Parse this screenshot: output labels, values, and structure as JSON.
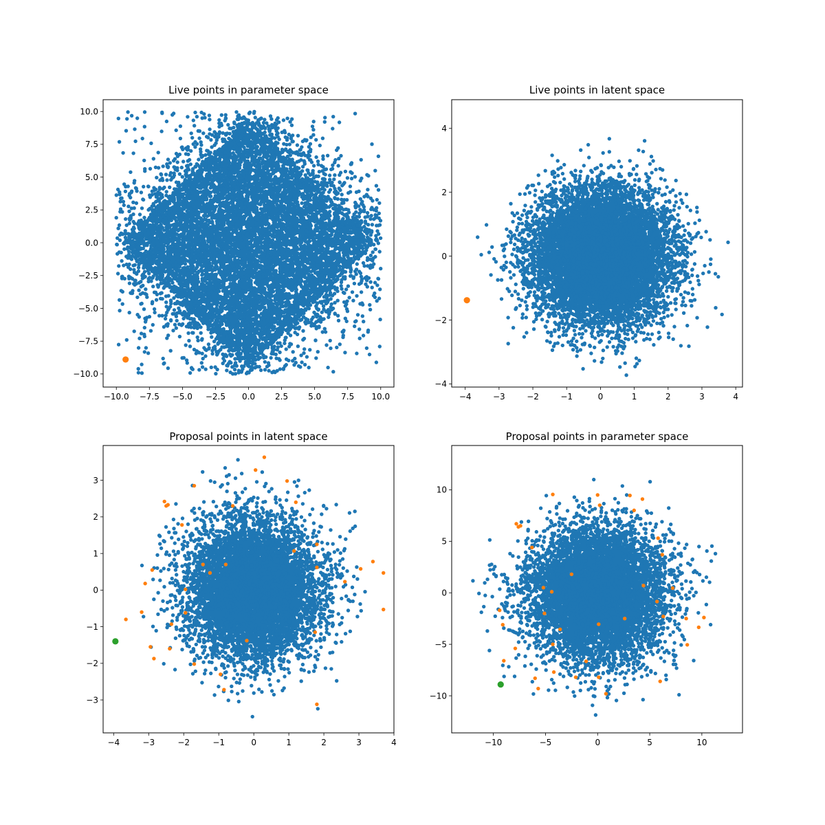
{
  "colors": {
    "blue": "#1f77b4",
    "orange": "#ff7f0e",
    "green": "#2ca02c"
  },
  "chart_data": [
    {
      "type": "scatter",
      "title": "Live points in parameter space",
      "xlim": [
        -11.0,
        11.0
      ],
      "ylim": [
        -11.0,
        10.9
      ],
      "xticks": [
        -10.0,
        -7.5,
        -5.0,
        -2.5,
        0.0,
        2.5,
        5.0,
        7.5,
        10.0
      ],
      "xtick_labels": [
        "−10.0",
        "−7.5",
        "−5.0",
        "−2.5",
        "0.0",
        "2.5",
        "5.0",
        "7.5",
        "10.0"
      ],
      "yticks": [
        -10.0,
        -7.5,
        -5.0,
        -2.5,
        0.0,
        2.5,
        5.0,
        7.5,
        10.0
      ],
      "ytick_labels": [
        "−10.0",
        "−7.5",
        "−5.0",
        "−2.5",
        "0.0",
        "2.5",
        "5.0",
        "7.5",
        "10.0"
      ],
      "bulk": {
        "distribution": "diamond",
        "half_width": 10.0,
        "dense_count": 9000,
        "sparse_count": 1800,
        "color": "blue",
        "seed": 11
      },
      "highlight": [
        {
          "x": -9.3,
          "y": -8.9,
          "color": "orange"
        }
      ]
    },
    {
      "type": "scatter",
      "title": "Live points in latent space",
      "xlim": [
        -4.4,
        4.2
      ],
      "ylim": [
        -4.1,
        4.9
      ],
      "xticks": [
        -4,
        -3,
        -2,
        -1,
        0,
        1,
        2,
        3,
        4
      ],
      "xtick_labels": [
        "−4",
        "−3",
        "−2",
        "−1",
        "0",
        "1",
        "2",
        "3",
        "4"
      ],
      "yticks": [
        -4,
        -2,
        0,
        2,
        4
      ],
      "ytick_labels": [
        "−4",
        "−2",
        "0",
        "2",
        "4"
      ],
      "bulk": {
        "distribution": "gaussian",
        "sigma": 1.0,
        "dense_count": 9000,
        "sparse_count": 1400,
        "clip": 3.9,
        "color": "blue",
        "seed": 23
      },
      "highlight": [
        {
          "x": -3.95,
          "y": -1.38,
          "color": "orange"
        }
      ]
    },
    {
      "type": "scatter",
      "title": "Proposal points in latent space",
      "xlim": [
        -4.3,
        4.0
      ],
      "ylim": [
        -3.9,
        3.95
      ],
      "xticks": [
        -4,
        -3,
        -2,
        -1,
        0,
        1,
        2,
        3,
        4
      ],
      "xtick_labels": [
        "−4",
        "−3",
        "−2",
        "−1",
        "0",
        "1",
        "2",
        "3",
        "4"
      ],
      "yticks": [
        -3,
        -2,
        -1,
        0,
        1,
        2,
        3
      ],
      "ytick_labels": [
        "−3",
        "−2",
        "−1",
        "0",
        "1",
        "2",
        "3"
      ],
      "bulk": {
        "distribution": "gaussian",
        "sigma": 0.95,
        "dense_count": 6500,
        "sparse_count": 900,
        "clip": 3.6,
        "color": "blue",
        "seed": 37
      },
      "points": [
        {
          "x": 0.3,
          "y": 3.63
        },
        {
          "x": 0.05,
          "y": 3.28
        },
        {
          "x": 0.95,
          "y": 2.98
        },
        {
          "x": -1.7,
          "y": 2.85
        },
        {
          "x": -2.55,
          "y": 2.42
        },
        {
          "x": -2.45,
          "y": 2.33
        },
        {
          "x": -2.5,
          "y": 2.3
        },
        {
          "x": -0.6,
          "y": 2.3
        },
        {
          "x": 1.2,
          "y": 2.4
        },
        {
          "x": -2.05,
          "y": 1.78
        },
        {
          "x": 1.8,
          "y": 1.25
        },
        {
          "x": 1.15,
          "y": 1.07
        },
        {
          "x": 3.4,
          "y": 0.78
        },
        {
          "x": -1.45,
          "y": 0.7
        },
        {
          "x": -0.8,
          "y": 0.7
        },
        {
          "x": 1.8,
          "y": 0.62
        },
        {
          "x": 3.05,
          "y": 0.58
        },
        {
          "x": -2.9,
          "y": 0.55
        },
        {
          "x": 3.7,
          "y": 0.47
        },
        {
          "x": -1.25,
          "y": 0.47
        },
        {
          "x": 2.6,
          "y": 0.23
        },
        {
          "x": -3.1,
          "y": 0.18
        },
        {
          "x": -1.95,
          "y": 0.02
        },
        {
          "x": -1.95,
          "y": -0.62
        },
        {
          "x": -3.2,
          "y": -0.6
        },
        {
          "x": 3.7,
          "y": -0.53
        },
        {
          "x": -3.65,
          "y": -0.8
        },
        {
          "x": -2.35,
          "y": -0.93
        },
        {
          "x": 1.75,
          "y": -1.15
        },
        {
          "x": -0.2,
          "y": -1.38
        },
        {
          "x": -2.95,
          "y": -1.55
        },
        {
          "x": -2.4,
          "y": -1.6
        },
        {
          "x": -2.85,
          "y": -1.87
        },
        {
          "x": -1.7,
          "y": -2.02
        },
        {
          "x": -0.95,
          "y": -2.3
        },
        {
          "x": -0.85,
          "y": -2.72
        },
        {
          "x": 1.8,
          "y": -3.12
        }
      ],
      "points_color": "orange",
      "highlight": [
        {
          "x": -3.95,
          "y": -1.4,
          "color": "green"
        }
      ]
    },
    {
      "type": "scatter",
      "title": "Proposal points in parameter space",
      "xlim": [
        -14.0,
        13.9
      ],
      "ylim": [
        -13.6,
        14.3
      ],
      "xticks": [
        -10,
        -5,
        0,
        5,
        10
      ],
      "xtick_labels": [
        "−10",
        "−5",
        "0",
        "5",
        "10"
      ],
      "yticks": [
        -10,
        -5,
        0,
        5,
        10
      ],
      "ytick_labels": [
        "−10",
        "−5",
        "0",
        "5",
        "10"
      ],
      "bulk": {
        "distribution": "gaussian",
        "sigma": 3.2,
        "dense_count": 6500,
        "sparse_count": 900,
        "clip": 12.8,
        "color": "blue",
        "seed": 53
      },
      "points": [
        {
          "x": -4.3,
          "y": 9.55
        },
        {
          "x": 0.0,
          "y": 9.5
        },
        {
          "x": 3.1,
          "y": 9.45
        },
        {
          "x": 4.3,
          "y": 9.1
        },
        {
          "x": 0.2,
          "y": 8.5
        },
        {
          "x": 3.5,
          "y": 8.0
        },
        {
          "x": -7.8,
          "y": 6.7
        },
        {
          "x": -7.6,
          "y": 6.4
        },
        {
          "x": -7.4,
          "y": 6.5
        },
        {
          "x": 5.8,
          "y": 5.3
        },
        {
          "x": -6.3,
          "y": 4.4
        },
        {
          "x": 6.2,
          "y": 3.7
        },
        {
          "x": -2.5,
          "y": 1.8
        },
        {
          "x": 4.4,
          "y": 0.7
        },
        {
          "x": -5.2,
          "y": 0.5
        },
        {
          "x": 7.2,
          "y": 0.45
        },
        {
          "x": -4.4,
          "y": 0.1
        },
        {
          "x": 5.7,
          "y": -0.85
        },
        {
          "x": -9.4,
          "y": -1.7
        },
        {
          "x": -5.1,
          "y": -2.0
        },
        {
          "x": 6.3,
          "y": -2.3
        },
        {
          "x": 8.5,
          "y": -2.5
        },
        {
          "x": 10.2,
          "y": -2.4
        },
        {
          "x": 2.6,
          "y": -2.5
        },
        {
          "x": -9.1,
          "y": -3.1
        },
        {
          "x": 0.1,
          "y": -3.05
        },
        {
          "x": -3.6,
          "y": -3.55
        },
        {
          "x": 9.7,
          "y": -3.35
        },
        {
          "x": -4.3,
          "y": -5.0
        },
        {
          "x": 8.6,
          "y": -5.05
        },
        {
          "x": -7.9,
          "y": -5.4
        },
        {
          "x": -9.0,
          "y": -6.6
        },
        {
          "x": -1.1,
          "y": -6.65
        },
        {
          "x": -4.2,
          "y": -7.7
        },
        {
          "x": -6.0,
          "y": -8.3
        },
        {
          "x": -2.1,
          "y": -8.2
        },
        {
          "x": 6.0,
          "y": -8.6
        },
        {
          "x": 0.1,
          "y": -8.2
        },
        {
          "x": -5.7,
          "y": -9.3
        },
        {
          "x": 0.8,
          "y": -9.8
        }
      ],
      "points_color": "orange",
      "highlight": [
        {
          "x": -9.3,
          "y": -8.9,
          "color": "green"
        }
      ]
    }
  ]
}
